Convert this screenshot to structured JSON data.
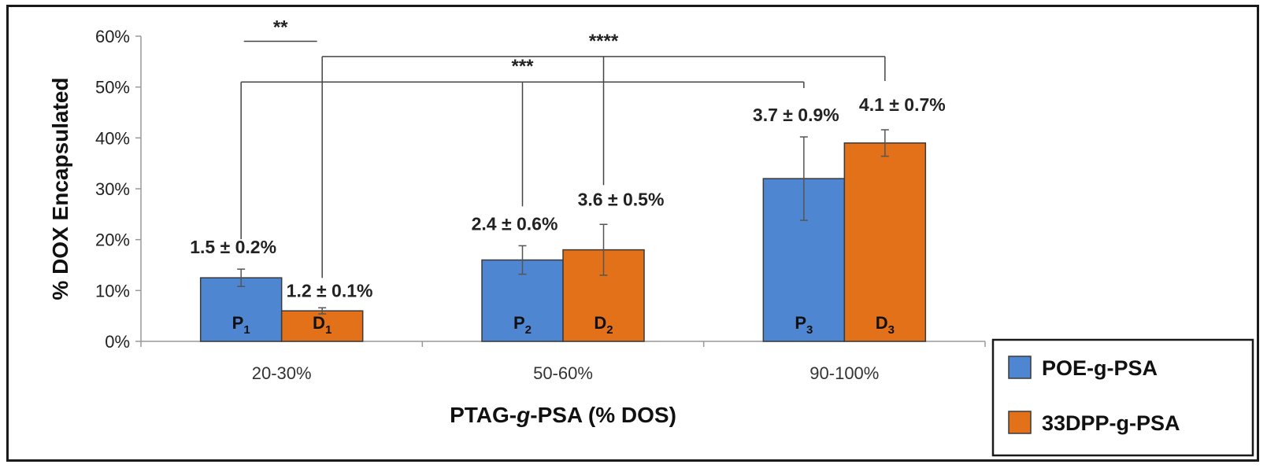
{
  "chart_data": {
    "type": "bar",
    "categories": [
      "20-30%",
      "50-60%",
      "90-100%"
    ],
    "series": [
      {
        "name": "POE-g-PSA",
        "color": "#4f86d2",
        "values": [
          12.5,
          16,
          32
        ],
        "error": [
          1.7,
          2.8,
          8.2
        ],
        "bar_labels": [
          "P",
          "P",
          "P"
        ],
        "bar_subscripts": [
          "1",
          "2",
          "3"
        ],
        "value_labels": [
          "1.5 ± 0.2%",
          "2.4 ± 0.6%",
          "3.7 ± 0.9%"
        ]
      },
      {
        "name": "33DPP-g-PSA",
        "color": "#e2711a",
        "values": [
          6,
          18,
          39
        ],
        "error": [
          0.6,
          5,
          2.6
        ],
        "bar_labels": [
          "D",
          "D",
          "D"
        ],
        "bar_subscripts": [
          "1",
          "2",
          "3"
        ],
        "value_labels": [
          "1.2 ± 0.1%",
          "3.6 ± 0.5%",
          "4.1 ± 0.7%"
        ]
      }
    ],
    "title": "",
    "ylabel": "% DOX Encapsulated",
    "xlabel_parts": [
      "PTAG-",
      "g",
      "-PSA (% DOS)"
    ],
    "ylim": [
      0,
      60
    ],
    "yticks": [
      0,
      10,
      20,
      30,
      40,
      50,
      60
    ],
    "ytick_labels": [
      "0%",
      "10%",
      "20%",
      "30%",
      "40%",
      "50%",
      "60%"
    ],
    "significance": [
      {
        "label": "**",
        "kind": "flat",
        "from": [
          0,
          0
        ],
        "to": [
          0,
          1
        ],
        "level": 59
      },
      {
        "label": "***",
        "kind": "bracket",
        "from": [
          0,
          0
        ],
        "to": [
          2,
          0
        ],
        "level": 51,
        "mid": [
          1,
          0
        ]
      },
      {
        "label": "****",
        "kind": "bracket",
        "from": [
          0,
          1
        ],
        "to": [
          2,
          1
        ],
        "level": 56,
        "mid": [
          1,
          1
        ]
      }
    ],
    "legend_position": "bottom-right",
    "grid": false
  }
}
